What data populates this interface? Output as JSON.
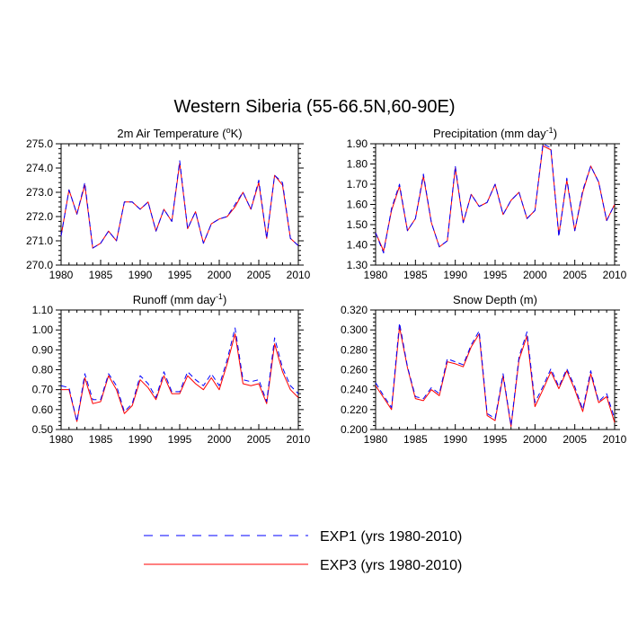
{
  "figure": {
    "title": "Western Siberia (55-66.5N,60-90E)"
  },
  "legend": {
    "entries": [
      {
        "label": "EXP1 (yrs 1980-2010)",
        "color": "#0000ff",
        "dash": "dashed"
      },
      {
        "label": "EXP3 (yrs 1980-2010)",
        "color": "#ff0000",
        "dash": "solid"
      }
    ]
  },
  "chart_data": [
    {
      "type": "line",
      "title_main": "2m Air Temperature (",
      "title_sup": "o",
      "title_tail": "K)",
      "xlim": [
        1980,
        2010
      ],
      "ylim": [
        270.0,
        275.0
      ],
      "xticks": [
        1980,
        1985,
        1990,
        1995,
        2000,
        2005,
        2010
      ],
      "xtick_labels": [
        "1980",
        "1985",
        "1990",
        "1995",
        "2000",
        "2005",
        "2010"
      ],
      "yticks": [
        270.0,
        271.0,
        272.0,
        273.0,
        274.0,
        275.0
      ],
      "ytick_labels": [
        "270.0",
        "271.0",
        "272.0",
        "273.0",
        "274.0",
        "275.0"
      ],
      "yminor_step": 0.2,
      "x": [
        1980,
        1981,
        1982,
        1983,
        1984,
        1985,
        1986,
        1987,
        1988,
        1989,
        1990,
        1991,
        1992,
        1993,
        1994,
        1995,
        1996,
        1997,
        1998,
        1999,
        2000,
        2001,
        2002,
        2003,
        2004,
        2005,
        2006,
        2007,
        2008,
        2009,
        2010
      ],
      "series": [
        {
          "name": "EXP1 (yrs 1980-2010)",
          "color": "#0000ff",
          "dash": "dashed",
          "values": [
            271.2,
            273.1,
            272.1,
            273.4,
            270.7,
            270.9,
            271.4,
            271.0,
            272.6,
            272.6,
            272.3,
            272.6,
            271.4,
            272.3,
            271.8,
            274.3,
            271.5,
            272.2,
            270.9,
            271.7,
            271.9,
            272.0,
            272.5,
            273.0,
            272.3,
            273.5,
            271.1,
            273.7,
            273.4,
            271.1,
            270.8
          ]
        },
        {
          "name": "EXP3 (yrs 1980-2010)",
          "color": "#ff0000",
          "dash": "solid",
          "values": [
            271.2,
            273.1,
            272.1,
            273.3,
            270.7,
            270.9,
            271.4,
            271.0,
            272.6,
            272.6,
            272.3,
            272.6,
            271.4,
            272.3,
            271.8,
            274.2,
            271.5,
            272.2,
            270.9,
            271.7,
            271.9,
            272.0,
            272.4,
            273.0,
            272.3,
            273.4,
            271.1,
            273.7,
            273.3,
            271.1,
            270.8
          ]
        }
      ]
    },
    {
      "type": "line",
      "title_main": "Precipitation (mm day",
      "title_sup": "-1",
      "title_tail": ")",
      "xlim": [
        1980,
        2010
      ],
      "ylim": [
        1.3,
        1.9
      ],
      "xticks": [
        1980,
        1985,
        1990,
        1995,
        2000,
        2005,
        2010
      ],
      "xtick_labels": [
        "1980",
        "1985",
        "1990",
        "1995",
        "2000",
        "2005",
        "2010"
      ],
      "yticks": [
        1.3,
        1.4,
        1.5,
        1.6,
        1.7,
        1.8,
        1.9
      ],
      "ytick_labels": [
        "1.30",
        "1.40",
        "1.50",
        "1.60",
        "1.70",
        "1.80",
        "1.90"
      ],
      "yminor_step": 0.02,
      "x": [
        1980,
        1981,
        1982,
        1983,
        1984,
        1985,
        1986,
        1987,
        1988,
        1989,
        1990,
        1991,
        1992,
        1993,
        1994,
        1995,
        1996,
        1997,
        1998,
        1999,
        2000,
        2001,
        2002,
        2003,
        2004,
        2005,
        2006,
        2007,
        2008,
        2009,
        2010
      ],
      "series": [
        {
          "name": "EXP1 (yrs 1980-2010)",
          "color": "#0000ff",
          "dash": "dashed",
          "values": [
            1.46,
            1.36,
            1.58,
            1.7,
            1.47,
            1.53,
            1.75,
            1.51,
            1.39,
            1.42,
            1.79,
            1.51,
            1.65,
            1.59,
            1.61,
            1.7,
            1.55,
            1.62,
            1.66,
            1.53,
            1.57,
            1.9,
            1.88,
            1.44,
            1.73,
            1.47,
            1.67,
            1.79,
            1.71,
            1.52,
            1.6
          ]
        },
        {
          "name": "EXP3 (yrs 1980-2010)",
          "color": "#ff0000",
          "dash": "solid",
          "values": [
            1.46,
            1.37,
            1.57,
            1.69,
            1.47,
            1.53,
            1.74,
            1.51,
            1.39,
            1.42,
            1.78,
            1.51,
            1.65,
            1.59,
            1.61,
            1.7,
            1.55,
            1.62,
            1.66,
            1.53,
            1.57,
            1.89,
            1.87,
            1.45,
            1.72,
            1.47,
            1.66,
            1.79,
            1.71,
            1.52,
            1.6
          ]
        }
      ]
    },
    {
      "type": "line",
      "title_main": "Runoff (mm day",
      "title_sup": "-1",
      "title_tail": ")",
      "xlim": [
        1980,
        2010
      ],
      "ylim": [
        0.5,
        1.1
      ],
      "xticks": [
        1980,
        1985,
        1990,
        1995,
        2000,
        2005,
        2010
      ],
      "xtick_labels": [
        "1980",
        "1985",
        "1990",
        "1995",
        "2000",
        "2005",
        "2010"
      ],
      "yticks": [
        0.5,
        0.6,
        0.7,
        0.8,
        0.9,
        1.0,
        1.1
      ],
      "ytick_labels": [
        "0.50",
        "0.60",
        "0.70",
        "0.80",
        "0.90",
        "1.00",
        "1.10"
      ],
      "yminor_step": 0.02,
      "x": [
        1980,
        1981,
        1982,
        1983,
        1984,
        1985,
        1986,
        1987,
        1988,
        1989,
        1990,
        1991,
        1992,
        1993,
        1994,
        1995,
        1996,
        1997,
        1998,
        1999,
        2000,
        2001,
        2002,
        2003,
        2004,
        2005,
        2006,
        2007,
        2008,
        2009,
        2010
      ],
      "series": [
        {
          "name": "EXP1 (yrs 1980-2010)",
          "color": "#0000ff",
          "dash": "dashed",
          "values": [
            0.72,
            0.71,
            0.54,
            0.78,
            0.65,
            0.65,
            0.78,
            0.72,
            0.59,
            0.63,
            0.77,
            0.73,
            0.66,
            0.79,
            0.69,
            0.69,
            0.79,
            0.75,
            0.72,
            0.78,
            0.72,
            0.85,
            1.01,
            0.75,
            0.74,
            0.75,
            0.64,
            0.96,
            0.81,
            0.72,
            0.68
          ]
        },
        {
          "name": "EXP3 (yrs 1980-2010)",
          "color": "#ff0000",
          "dash": "solid",
          "values": [
            0.7,
            0.7,
            0.54,
            0.76,
            0.63,
            0.64,
            0.77,
            0.7,
            0.58,
            0.62,
            0.75,
            0.71,
            0.65,
            0.77,
            0.68,
            0.68,
            0.77,
            0.73,
            0.7,
            0.76,
            0.7,
            0.83,
            0.98,
            0.73,
            0.72,
            0.73,
            0.63,
            0.93,
            0.79,
            0.7,
            0.66
          ]
        }
      ]
    },
    {
      "type": "line",
      "title_main": "Snow Depth (m)",
      "title_sup": "",
      "title_tail": "",
      "xlim": [
        1980,
        2010
      ],
      "ylim": [
        0.2,
        0.32
      ],
      "xticks": [
        1980,
        1985,
        1990,
        1995,
        2000,
        2005,
        2010
      ],
      "xtick_labels": [
        "1980",
        "1985",
        "1990",
        "1995",
        "2000",
        "2005",
        "2010"
      ],
      "yticks": [
        0.2,
        0.22,
        0.24,
        0.26,
        0.28,
        0.3,
        0.32
      ],
      "ytick_labels": [
        "0.200",
        "0.220",
        "0.240",
        "0.260",
        "0.280",
        "0.300",
        "0.320"
      ],
      "yminor_step": 0.004,
      "x": [
        1980,
        1981,
        1982,
        1983,
        1984,
        1985,
        1986,
        1987,
        1988,
        1989,
        1990,
        1991,
        1992,
        1993,
        1994,
        1995,
        1996,
        1997,
        1998,
        1999,
        2000,
        2001,
        2002,
        2003,
        2004,
        2005,
        2006,
        2007,
        2008,
        2009,
        2010
      ],
      "series": [
        {
          "name": "EXP1 (yrs 1980-2010)",
          "color": "#0000ff",
          "dash": "dashed",
          "values": [
            0.247,
            0.234,
            0.222,
            0.307,
            0.263,
            0.233,
            0.231,
            0.242,
            0.236,
            0.271,
            0.268,
            0.265,
            0.285,
            0.299,
            0.216,
            0.211,
            0.256,
            0.204,
            0.273,
            0.298,
            0.227,
            0.243,
            0.261,
            0.243,
            0.261,
            0.243,
            0.22,
            0.259,
            0.228,
            0.236,
            0.211
          ]
        },
        {
          "name": "EXP3 (yrs 1980-2010)",
          "color": "#ff0000",
          "dash": "solid",
          "values": [
            0.244,
            0.232,
            0.22,
            0.303,
            0.262,
            0.231,
            0.229,
            0.24,
            0.234,
            0.268,
            0.266,
            0.263,
            0.283,
            0.296,
            0.214,
            0.209,
            0.254,
            0.203,
            0.27,
            0.294,
            0.223,
            0.24,
            0.258,
            0.241,
            0.259,
            0.24,
            0.218,
            0.256,
            0.227,
            0.233,
            0.207
          ]
        }
      ]
    }
  ]
}
